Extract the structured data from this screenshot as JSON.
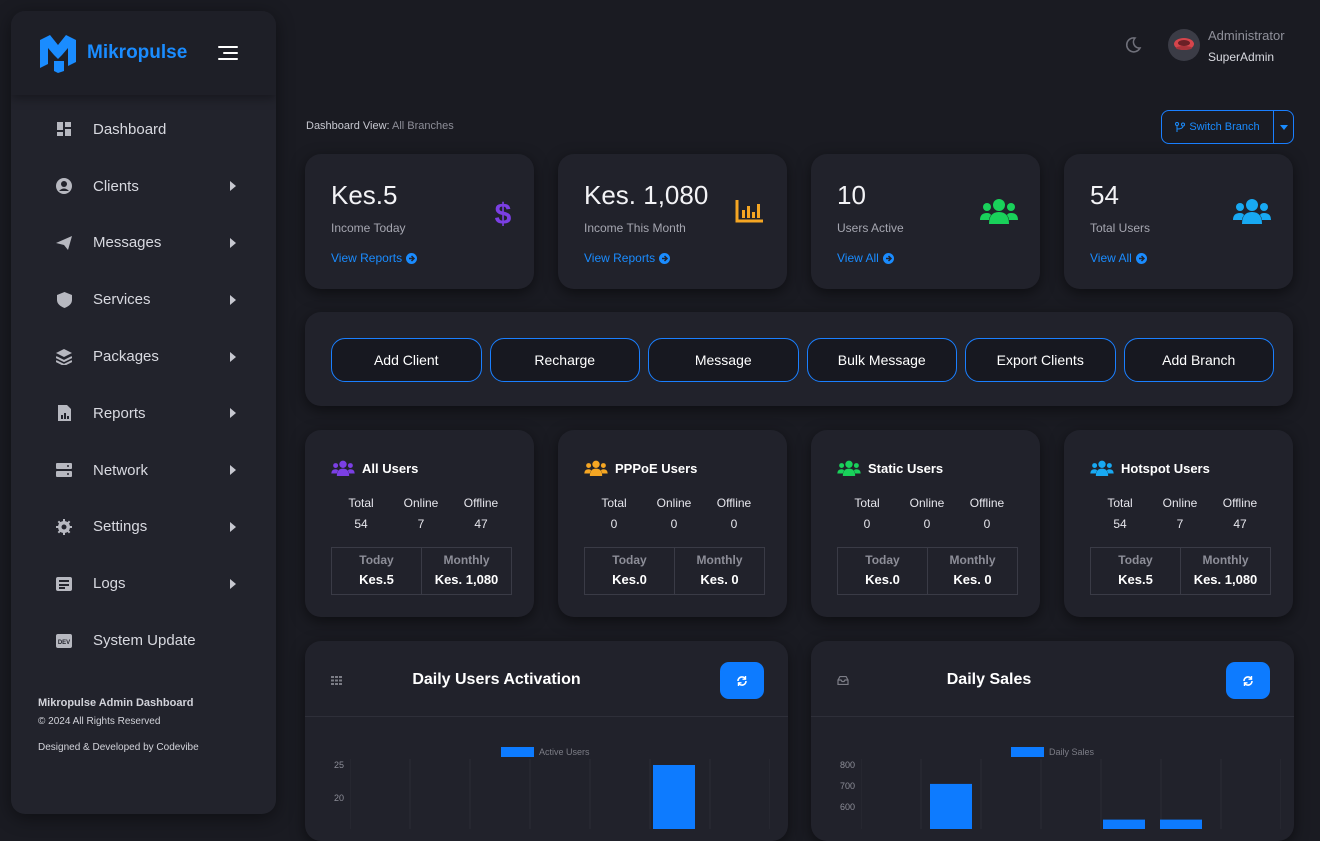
{
  "brand": {
    "name": "Mikropulse"
  },
  "sidebar": {
    "items": [
      {
        "label": "Dashboard",
        "icon": "dashboard-icon",
        "has_submenu": false
      },
      {
        "label": "Clients",
        "icon": "user-circle-icon",
        "has_submenu": true
      },
      {
        "label": "Messages",
        "icon": "paper-plane-icon",
        "has_submenu": true
      },
      {
        "label": "Services",
        "icon": "shield-icon",
        "has_submenu": true
      },
      {
        "label": "Packages",
        "icon": "layers-icon",
        "has_submenu": true
      },
      {
        "label": "Reports",
        "icon": "report-file-icon",
        "has_submenu": true
      },
      {
        "label": "Network",
        "icon": "server-icon",
        "has_submenu": true
      },
      {
        "label": "Settings",
        "icon": "gear-icon",
        "has_submenu": true
      },
      {
        "label": "Logs",
        "icon": "log-list-icon",
        "has_submenu": true
      },
      {
        "label": "System Update",
        "icon": "dev-badge-icon",
        "has_submenu": false
      }
    ],
    "footer": {
      "title": "Mikropulse Admin Dashboard",
      "copyright": "© 2024 All Rights Reserved",
      "credit": "Designed & Developed by Codevibe"
    }
  },
  "user": {
    "name": "Administrator",
    "role": "SuperAdmin"
  },
  "dashboard_view": {
    "label": "Dashboard View:",
    "value": "All Branches"
  },
  "switch_branch": {
    "label": "Switch Branch"
  },
  "stats": [
    {
      "amount": "Kes.5",
      "label": "Income Today",
      "link": "View Reports",
      "icon": "dollar-icon",
      "color": "#7b3fe4"
    },
    {
      "amount": "Kes. 1,080",
      "label": "Income This Month",
      "link": "View Reports",
      "icon": "bar-chart-icon",
      "color": "#f5a623"
    },
    {
      "amount": "10",
      "label": "Users Active",
      "link": "View All",
      "icon": "users-icon",
      "color": "#19d15a"
    },
    {
      "amount": "54",
      "label": "Total Users",
      "link": "View All",
      "icon": "users-icon",
      "color": "#18a9f2"
    }
  ],
  "quick_actions": [
    "Add Client",
    "Recharge",
    "Message",
    "Bulk Message",
    "Export Clients",
    "Add Branch"
  ],
  "user_types": [
    {
      "title": "All Users",
      "color": "#7b3fe4",
      "headers": [
        "Total",
        "Online",
        "Offline"
      ],
      "values": [
        "54",
        "7",
        "47"
      ],
      "today_label": "Today",
      "monthly_label": "Monthly",
      "today": "Kes.5",
      "monthly": "Kes. 1,080"
    },
    {
      "title": "PPPoE Users",
      "color": "#f5a623",
      "headers": [
        "Total",
        "Online",
        "Offline"
      ],
      "values": [
        "0",
        "0",
        "0"
      ],
      "today_label": "Today",
      "monthly_label": "Monthly",
      "today": "Kes.0",
      "monthly": "Kes. 0"
    },
    {
      "title": "Static Users",
      "color": "#19d15a",
      "headers": [
        "Total",
        "Online",
        "Offline"
      ],
      "values": [
        "0",
        "0",
        "0"
      ],
      "today_label": "Today",
      "monthly_label": "Monthly",
      "today": "Kes.0",
      "monthly": "Kes. 0"
    },
    {
      "title": "Hotspot Users",
      "color": "#18a9f2",
      "headers": [
        "Total",
        "Online",
        "Offline"
      ],
      "values": [
        "54",
        "7",
        "47"
      ],
      "today_label": "Today",
      "monthly_label": "Monthly",
      "today": "Kes.5",
      "monthly": "Kes. 1,080"
    }
  ],
  "charts": [
    {
      "title": "Daily Users Activation",
      "small_icon": "grid-icon",
      "legend": "Active Users",
      "ticks": [
        "25",
        "20"
      ]
    },
    {
      "title": "Daily Sales",
      "small_icon": "inbox-icon",
      "legend": "Daily Sales",
      "ticks": [
        "800",
        "700",
        "600"
      ]
    }
  ],
  "chart_data": [
    {
      "type": "bar",
      "title": "Daily Users Activation",
      "series": [
        {
          "name": "Active Users",
          "values": [
            0,
            0,
            0,
            0,
            0,
            25
          ]
        }
      ],
      "ylim": [
        0,
        25
      ],
      "note": "only upper portion visible"
    },
    {
      "type": "bar",
      "title": "Daily Sales",
      "series": [
        {
          "name": "Daily Sales",
          "values": [
            0,
            710,
            0,
            0,
            0,
            540,
            540
          ]
        }
      ],
      "ylim": [
        0,
        800
      ],
      "note": "only upper portion visible"
    }
  ],
  "colors": {
    "accent": "#1a8cff",
    "bg": "#1a1b22",
    "card": "#21222b"
  }
}
